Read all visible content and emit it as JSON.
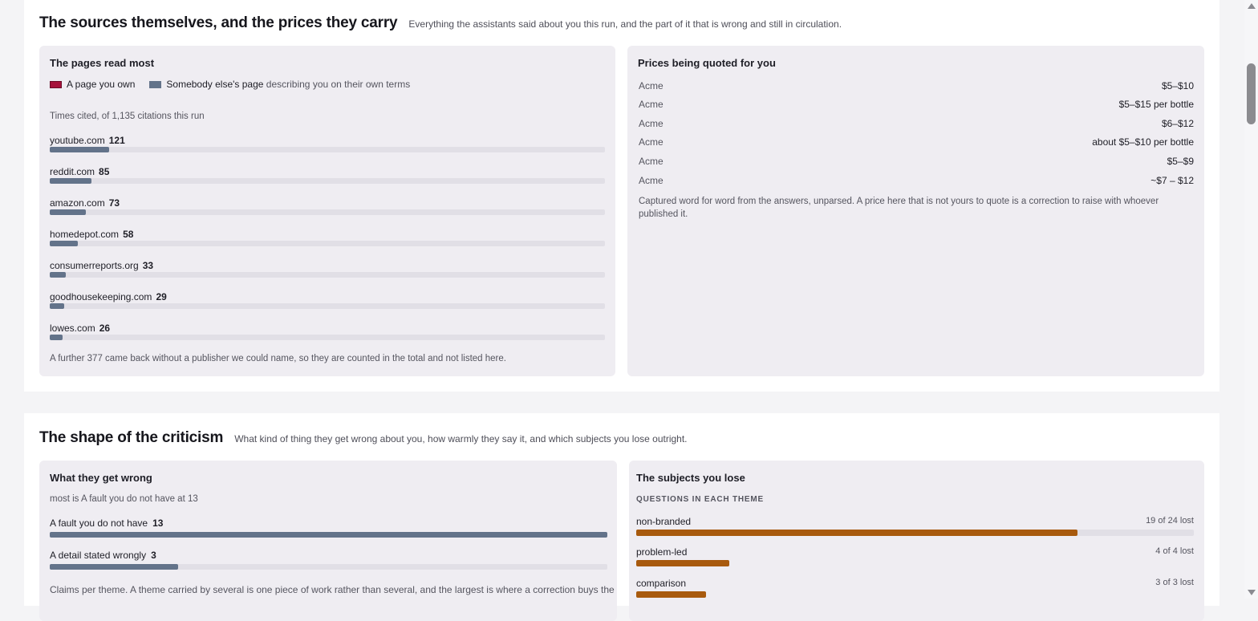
{
  "sources_section": {
    "title": "The sources themselves, and the prices they carry",
    "subtitle": "Everything the assistants said about you this run, and the part of it that is wrong and still in circulation."
  },
  "pages_card": {
    "title": "The pages read most",
    "legend_own": "A page you own",
    "legend_other_bold": "Somebody else's page",
    "legend_other_rest": " describing you on their own terms",
    "caption": "Times cited, of 1,135 citations this run",
    "sites": [
      {
        "name": "youtube.com",
        "count": "121",
        "value": 121
      },
      {
        "name": "reddit.com",
        "count": "85",
        "value": 85
      },
      {
        "name": "amazon.com",
        "count": "73",
        "value": 73
      },
      {
        "name": "homedepot.com",
        "count": "58",
        "value": 58
      },
      {
        "name": "consumerreports.org",
        "count": "33",
        "value": 33
      },
      {
        "name": "goodhousekeeping.com",
        "count": "29",
        "value": 29
      },
      {
        "name": "lowes.com",
        "count": "26",
        "value": 26
      }
    ],
    "scale_max": 1135,
    "footer": "A further 377 came back without a publisher we could name, so they are counted in the total and not listed here."
  },
  "prices_card": {
    "title": "Prices being quoted for you",
    "rows": [
      {
        "company": "Acme",
        "price": "$5–$10"
      },
      {
        "company": "Acme",
        "price": "$5–$15 per bottle"
      },
      {
        "company": "Acme",
        "price": "$6–$12"
      },
      {
        "company": "Acme",
        "price": "about $5–$10 per bottle"
      },
      {
        "company": "Acme",
        "price": "$5–$9"
      },
      {
        "company": "Acme",
        "price": "~$7 – $12"
      }
    ],
    "note": "Captured word for word from the answers, unparsed. A price here that is not yours to quote is a correction to raise with whoever published it."
  },
  "criticism_section": {
    "title": "The shape of the criticism",
    "subtitle": "What kind of thing they get wrong about you, how warmly they say it, and which subjects you lose outright."
  },
  "wrong_card": {
    "title": "What they get wrong",
    "caption": "most is A fault you do not have at 13",
    "claims": [
      {
        "label": "A fault you do not have",
        "count": "13",
        "value": 13
      },
      {
        "label": "A detail stated wrongly",
        "count": "3",
        "value": 3
      }
    ],
    "scale_max": 13,
    "footer": "Claims per theme. A theme carried by several is one piece of work rather than several, and the largest is where a correction buys the"
  },
  "subjects_card": {
    "title": "The subjects you lose",
    "caps": "QUESTIONS IN EACH THEME",
    "themes": [
      {
        "label": "non-branded",
        "count": "19 of 24 lost",
        "lost": 19,
        "total": 24
      },
      {
        "label": "problem-led",
        "count": "4 of 4 lost",
        "lost": 4,
        "total": 4
      },
      {
        "label": "comparison",
        "count": "3 of 3 lost",
        "lost": 3,
        "total": 3
      }
    ],
    "scale_max": 24
  },
  "colors": {
    "own": "#a6123c",
    "other": "#63738a",
    "lost": "#a85a0e"
  }
}
